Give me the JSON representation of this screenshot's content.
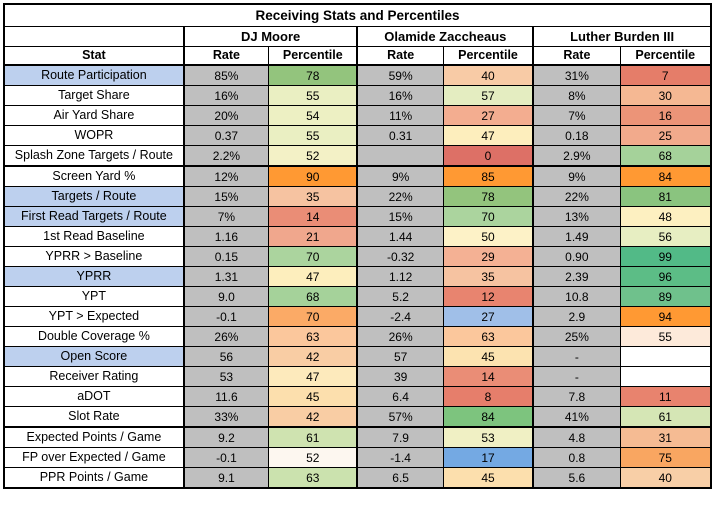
{
  "chart_data": {
    "type": "table",
    "title": "Receiving Stats and Percentiles",
    "players": [
      "DJ Moore",
      "Olamide Zaccheaus",
      "Luther Burden III"
    ],
    "column_headers": {
      "stat": "Stat",
      "rate": "Rate",
      "percentile": "Percentile"
    },
    "colors": {
      "border": "#000000",
      "rate_cell_bg": "#bfbfbf",
      "stat_highlight_bg": "#bdd0ee",
      "screen_yard_orange": "#ff9933"
    },
    "rows": [
      {
        "stat": "Route Participation",
        "highlight": true,
        "group_end": false,
        "cells": [
          {
            "rate": "85%",
            "pct": "78",
            "bg": "#93c47d"
          },
          {
            "rate": "59%",
            "pct": "40",
            "bg": "#f8cba6"
          },
          {
            "rate": "31%",
            "pct": "7",
            "bg": "#e57d69"
          }
        ]
      },
      {
        "stat": "Target Share",
        "highlight": false,
        "group_end": false,
        "cells": [
          {
            "rate": "16%",
            "pct": "55",
            "bg": "#eaefc2"
          },
          {
            "rate": "16%",
            "pct": "57",
            "bg": "#e4edc1"
          },
          {
            "rate": "8%",
            "pct": "30",
            "bg": "#f5b893"
          }
        ]
      },
      {
        "stat": "Air Yard Share",
        "highlight": false,
        "group_end": false,
        "cells": [
          {
            "rate": "20%",
            "pct": "54",
            "bg": "#edf0c3"
          },
          {
            "rate": "11%",
            "pct": "27",
            "bg": "#f3ad90"
          },
          {
            "rate": "7%",
            "pct": "16",
            "bg": "#ec9478"
          }
        ]
      },
      {
        "stat": "WOPR",
        "highlight": false,
        "group_end": false,
        "cells": [
          {
            "rate": "0.37",
            "pct": "55",
            "bg": "#eaefc2"
          },
          {
            "rate": "0.31",
            "pct": "47",
            "bg": "#fdeebd"
          },
          {
            "rate": "0.18",
            "pct": "25",
            "bg": "#f2aa8c"
          }
        ]
      },
      {
        "stat": "Splash Zone Targets / Route",
        "highlight": false,
        "group_end": true,
        "cells": [
          {
            "rate": "2.2%",
            "pct": "52",
            "bg": "#f3f1c6"
          },
          {
            "rate": "",
            "pct": "0",
            "bg": "#dd7066"
          },
          {
            "rate": "2.9%",
            "pct": "68",
            "bg": "#a5d29a"
          }
        ]
      },
      {
        "stat": "Screen Yard %",
        "highlight": false,
        "group_end": false,
        "cells": [
          {
            "rate": "12%",
            "pct": "90",
            "bg": "#ff9933"
          },
          {
            "rate": "9%",
            "pct": "85",
            "bg": "#ff9933"
          },
          {
            "rate": "9%",
            "pct": "84",
            "bg": "#ff9933"
          }
        ]
      },
      {
        "stat": "Targets / Route",
        "highlight": true,
        "group_end": false,
        "cells": [
          {
            "rate": "15%",
            "pct": "35",
            "bg": "#f6c3a1"
          },
          {
            "rate": "22%",
            "pct": "78",
            "bg": "#93c47d"
          },
          {
            "rate": "22%",
            "pct": "81",
            "bg": "#8ac47f"
          }
        ]
      },
      {
        "stat": "First Read Targets / Route",
        "highlight": true,
        "group_end": false,
        "cells": [
          {
            "rate": "7%",
            "pct": "14",
            "bg": "#ea8d76"
          },
          {
            "rate": "15%",
            "pct": "70",
            "bg": "#abd49e"
          },
          {
            "rate": "13%",
            "pct": "48",
            "bg": "#fdf0c1"
          }
        ]
      },
      {
        "stat": "1st Read Baseline",
        "highlight": false,
        "group_end": false,
        "cells": [
          {
            "rate": "1.16",
            "pct": "21",
            "bg": "#f0a78d"
          },
          {
            "rate": "1.44",
            "pct": "50",
            "bg": "#fdf2c7"
          },
          {
            "rate": "1.49",
            "pct": "56",
            "bg": "#e7eec2"
          }
        ]
      },
      {
        "stat": "YPRR > Baseline",
        "highlight": false,
        "group_end": false,
        "cells": [
          {
            "rate": "0.15",
            "pct": "70",
            "bg": "#abd49e"
          },
          {
            "rate": "-0.32",
            "pct": "29",
            "bg": "#f4b194"
          },
          {
            "rate": "0.90",
            "pct": "99",
            "bg": "#52ba87"
          }
        ]
      },
      {
        "stat": "YPRR",
        "highlight": true,
        "group_end": false,
        "cells": [
          {
            "rate": "1.31",
            "pct": "47",
            "bg": "#fdeebd"
          },
          {
            "rate": "1.12",
            "pct": "35",
            "bg": "#f6c3a1"
          },
          {
            "rate": "2.39",
            "pct": "96",
            "bg": "#5cbd86"
          }
        ]
      },
      {
        "stat": "YPT",
        "highlight": false,
        "group_end": false,
        "cells": [
          {
            "rate": "9.0",
            "pct": "68",
            "bg": "#a5d29a"
          },
          {
            "rate": "5.2",
            "pct": "12",
            "bg": "#e8846f"
          },
          {
            "rate": "10.8",
            "pct": "89",
            "bg": "#6fc18c"
          }
        ]
      },
      {
        "stat": "YPT > Expected",
        "highlight": false,
        "group_end": false,
        "cells": [
          {
            "rate": "-0.1",
            "pct": "70",
            "bg": "#fbaa66"
          },
          {
            "rate": "-2.4",
            "pct": "27",
            "bg": "#a0bfe8"
          },
          {
            "rate": "2.9",
            "pct": "94",
            "bg": "#ff9933"
          }
        ]
      },
      {
        "stat": "Double Coverage %",
        "highlight": false,
        "group_end": false,
        "cells": [
          {
            "rate": "26%",
            "pct": "63",
            "bg": "#fbc79c"
          },
          {
            "rate": "26%",
            "pct": "63",
            "bg": "#fbc79c"
          },
          {
            "rate": "25%",
            "pct": "55",
            "bg": "#fdeada"
          }
        ]
      },
      {
        "stat": "Open Score",
        "highlight": true,
        "group_end": false,
        "cells": [
          {
            "rate": "56",
            "pct": "42",
            "bg": "#f9cda4"
          },
          {
            "rate": "57",
            "pct": "45",
            "bg": "#fce3b0"
          },
          {
            "rate": "-",
            "pct": "",
            "bg": "#ffffff"
          }
        ]
      },
      {
        "stat": "Receiver Rating",
        "highlight": false,
        "group_end": false,
        "cells": [
          {
            "rate": "53",
            "pct": "47",
            "bg": "#fdeabc"
          },
          {
            "rate": "39",
            "pct": "14",
            "bg": "#ea8d76"
          },
          {
            "rate": "-",
            "pct": "",
            "bg": "#ffffff"
          }
        ]
      },
      {
        "stat": "aDOT",
        "highlight": false,
        "group_end": false,
        "cells": [
          {
            "rate": "11.6",
            "pct": "45",
            "bg": "#fcdfad"
          },
          {
            "rate": "6.4",
            "pct": "8",
            "bg": "#e67e6b"
          },
          {
            "rate": "7.8",
            "pct": "11",
            "bg": "#e8836e"
          }
        ]
      },
      {
        "stat": "Slot Rate",
        "highlight": false,
        "group_end": true,
        "cells": [
          {
            "rate": "33%",
            "pct": "42",
            "bg": "#f9cda4"
          },
          {
            "rate": "57%",
            "pct": "84",
            "bg": "#7dc47e"
          },
          {
            "rate": "41%",
            "pct": "61",
            "bg": "#d5e6b5"
          }
        ]
      },
      {
        "stat": "Expected Points / Game",
        "highlight": false,
        "group_end": false,
        "cells": [
          {
            "rate": "9.2",
            "pct": "61",
            "bg": "#cfe3b0"
          },
          {
            "rate": "7.9",
            "pct": "53",
            "bg": "#f0f0c4"
          },
          {
            "rate": "4.8",
            "pct": "31",
            "bg": "#f5bb93"
          }
        ]
      },
      {
        "stat": "FP over Expected / Game",
        "highlight": false,
        "group_end": false,
        "cells": [
          {
            "rate": "-0.1",
            "pct": "52",
            "bg": "#fdf7f0"
          },
          {
            "rate": "-1.4",
            "pct": "17",
            "bg": "#74a9e3"
          },
          {
            "rate": "0.8",
            "pct": "75",
            "bg": "#f9a661"
          }
        ]
      },
      {
        "stat": "PPR Points / Game",
        "highlight": false,
        "group_end": false,
        "cells": [
          {
            "rate": "9.1",
            "pct": "63",
            "bg": "#cbe2ae"
          },
          {
            "rate": "6.5",
            "pct": "45",
            "bg": "#fcdfad"
          },
          {
            "rate": "5.6",
            "pct": "40",
            "bg": "#f8cfa7"
          }
        ]
      }
    ]
  }
}
